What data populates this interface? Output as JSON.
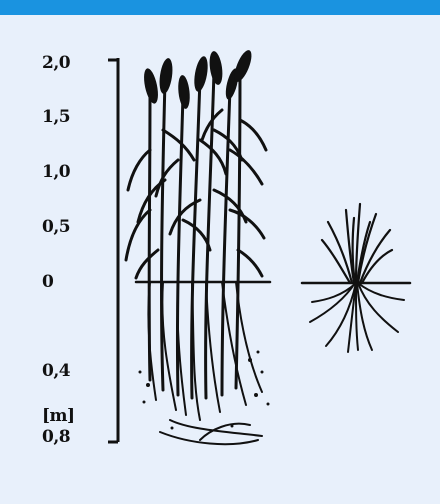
{
  "colors": {
    "header_bar": "#1a93e0",
    "background": "#e8f0fb",
    "ink": "#111111"
  },
  "scale": {
    "labels": [
      "2,0",
      "1,5",
      "1,0",
      "0,5",
      "0",
      "0,4",
      "[m]",
      "0,8"
    ]
  },
  "figures": {
    "left": "tall-grass-plant-icon",
    "right": "short-grass-tuft-icon"
  }
}
